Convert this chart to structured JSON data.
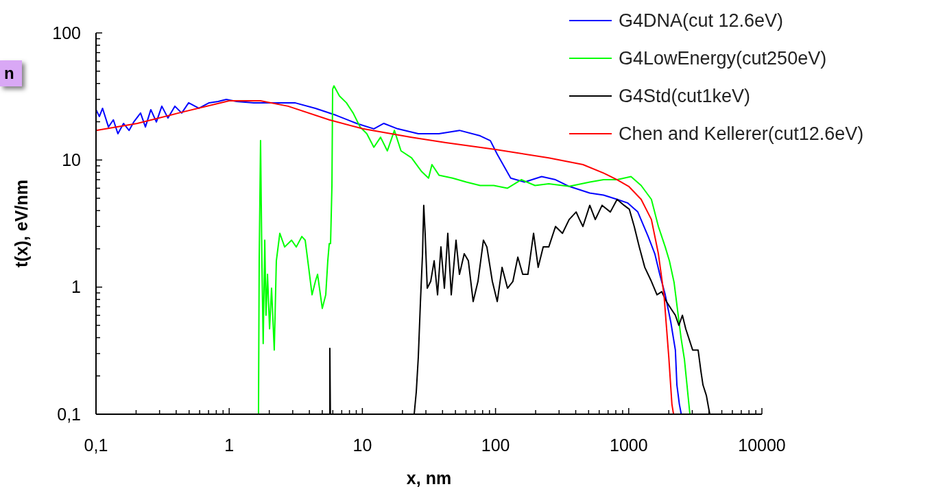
{
  "chart_data": {
    "type": "line",
    "xlabel": "x, nm",
    "ylabel": "t(x), eV/nm",
    "annotations": [
      "n"
    ],
    "log": "xy",
    "grid": false,
    "legend": "top right",
    "marker": "none",
    "line_style": "solid",
    "xlim": [
      0.1,
      10000
    ],
    "ylim": [
      0.1,
      100
    ],
    "xticks": [
      {
        "value": 0.1,
        "label": "0,1"
      },
      {
        "value": 0.2,
        "label": null
      },
      {
        "value": 0.3,
        "label": null
      },
      {
        "value": 0.4,
        "label": null
      },
      {
        "value": 0.5,
        "label": null
      },
      {
        "value": 0.6,
        "label": null
      },
      {
        "value": 0.7,
        "label": null
      },
      {
        "value": 0.8,
        "label": null
      },
      {
        "value": 0.9,
        "label": null
      },
      1,
      {
        "value": 2,
        "label": null
      },
      {
        "value": 3,
        "label": null
      },
      {
        "value": 4,
        "label": null
      },
      {
        "value": 5,
        "label": null
      },
      {
        "value": 6,
        "label": null
      },
      {
        "value": 7,
        "label": null
      },
      {
        "value": 8,
        "label": null
      },
      {
        "value": 9,
        "label": null
      },
      10,
      {
        "value": 20,
        "label": null
      },
      {
        "value": 30,
        "label": null
      },
      {
        "value": 40,
        "label": null
      },
      {
        "value": 50,
        "label": null
      },
      {
        "value": 60,
        "label": null
      },
      {
        "value": 70,
        "label": null
      },
      {
        "value": 80,
        "label": null
      },
      {
        "value": 90,
        "label": null
      },
      100,
      {
        "value": 200,
        "label": null
      },
      {
        "value": 300,
        "label": null
      },
      {
        "value": 400,
        "label": null
      },
      {
        "value": 500,
        "label": null
      },
      {
        "value": 600,
        "label": null
      },
      {
        "value": 700,
        "label": null
      },
      {
        "value": 800,
        "label": null
      },
      {
        "value": 900,
        "label": null
      },
      1000,
      {
        "value": 2000,
        "label": null
      },
      {
        "value": 3000,
        "label": null
      },
      {
        "value": 4000,
        "label": null
      },
      {
        "value": 5000,
        "label": null
      },
      {
        "value": 6000,
        "label": null
      },
      {
        "value": 7000,
        "label": null
      },
      {
        "value": 8000,
        "label": null
      },
      {
        "value": 9000,
        "label": null
      },
      10000
    ],
    "yticks": [
      {
        "value": 0.1,
        "label": "0,1"
      },
      {
        "value": 0.2,
        "label": null
      },
      {
        "value": 0.3,
        "label": null
      },
      {
        "value": 0.4,
        "label": null
      },
      {
        "value": 0.5,
        "label": null
      },
      {
        "value": 0.6,
        "label": null
      },
      {
        "value": 0.7,
        "label": null
      },
      {
        "value": 0.8,
        "label": null
      },
      {
        "value": 0.9,
        "label": null
      },
      1,
      {
        "value": 2,
        "label": null
      },
      {
        "value": 3,
        "label": null
      },
      {
        "value": 4,
        "label": null
      },
      {
        "value": 5,
        "label": null
      },
      {
        "value": 6,
        "label": null
      },
      {
        "value": 7,
        "label": null
      },
      {
        "value": 8,
        "label": null
      },
      {
        "value": 9,
        "label": null
      },
      10,
      {
        "value": 20,
        "label": null
      },
      {
        "value": 30,
        "label": null
      },
      {
        "value": 40,
        "label": null
      },
      {
        "value": 50,
        "label": null
      },
      {
        "value": 60,
        "label": null
      },
      {
        "value": 70,
        "label": null
      },
      {
        "value": 80,
        "label": null
      },
      {
        "value": 90,
        "label": null
      },
      100
    ],
    "series": [
      {
        "name": "G4DNA(cut 12.6eV)",
        "color": "#0000ff",
        "x": [
          0.1,
          0.106,
          0.112,
          0.124,
          0.135,
          0.146,
          0.161,
          0.177,
          0.192,
          0.216,
          0.235,
          0.258,
          0.284,
          0.312,
          0.347,
          0.391,
          0.44,
          0.496,
          0.592,
          0.707,
          0.826,
          0.951,
          1.14,
          1.53,
          2.18,
          3.11,
          4.44,
          6.34,
          9.06,
          12.2,
          14.5,
          18.4,
          26.3,
          37.6,
          53.6,
          76.6,
          91.4,
          103,
          130,
          165,
          222,
          282,
          357,
          510,
          647,
          818,
          979,
          1170,
          1400,
          1570,
          1710,
          1880,
          2070,
          2240,
          2300,
          2400,
          2480
        ],
        "values": [
          24.9,
          22.0,
          25.5,
          18.2,
          20.7,
          16.1,
          19.4,
          17.1,
          19.9,
          23.4,
          18.2,
          24.9,
          19.9,
          26.5,
          21.4,
          26.5,
          23.4,
          28.2,
          25.5,
          28.2,
          28.9,
          30.0,
          28.9,
          28.2,
          28.2,
          28.2,
          25.5,
          22.5,
          19.4,
          17.6,
          19.4,
          17.6,
          16.1,
          16.1,
          17.1,
          15.5,
          14.2,
          11.1,
          7.2,
          6.7,
          7.4,
          7.0,
          6.2,
          5.5,
          5.3,
          4.9,
          4.6,
          3.9,
          2.5,
          1.83,
          1.26,
          0.87,
          0.53,
          0.32,
          0.17,
          0.12,
          0.1
        ]
      },
      {
        "name": "G4LowEnergy(cut250eV)",
        "color": "#00ff00",
        "x": [
          1.66,
          1.68,
          1.72,
          1.76,
          1.8,
          1.85,
          1.89,
          1.94,
          2.01,
          2.08,
          2.18,
          2.26,
          2.4,
          2.61,
          2.94,
          3.19,
          3.51,
          3.72,
          3.95,
          4.19,
          4.44,
          4.61,
          5.0,
          5.31,
          5.5,
          5.64,
          5.77,
          5.91,
          5.98,
          6.12,
          6.73,
          7.59,
          8.53,
          9.61,
          10.8,
          12.2,
          13.7,
          15.4,
          17.4,
          19.5,
          23.4,
          27.9,
          31.4,
          33.3,
          37.6,
          47.6,
          60.4,
          76.6,
          97.0,
          123,
          156,
          198,
          251,
          357,
          510,
          647,
          818,
          1040,
          1240,
          1480,
          1670,
          1880,
          2020,
          2190,
          2470,
          2620,
          2880
        ],
        "values": [
          0.1,
          1.61,
          14.2,
          1.61,
          0.36,
          2.34,
          0.6,
          1.26,
          0.47,
          0.98,
          0.32,
          1.61,
          2.65,
          2.07,
          2.34,
          2.07,
          2.5,
          2.34,
          1.43,
          0.87,
          1.11,
          1.26,
          0.68,
          0.87,
          1.61,
          2.2,
          2.2,
          6.3,
          36.1,
          38.3,
          31.9,
          28.2,
          23.4,
          18.2,
          16.1,
          12.6,
          15.1,
          11.8,
          17.1,
          11.8,
          10.4,
          8.1,
          7.2,
          9.2,
          7.6,
          7.2,
          6.7,
          6.3,
          6.3,
          6.0,
          7.0,
          6.3,
          6.5,
          6.2,
          6.7,
          7.0,
          7.0,
          7.4,
          6.3,
          4.9,
          3.0,
          2.07,
          1.61,
          1.09,
          0.4,
          0.27,
          0.1
        ]
      },
      {
        "name": "G4Std(cut1keV)",
        "color": "#000000",
        "x": [
          5.7,
          5.7,
          5.75,
          15,
          24.5,
          25.4,
          26.3,
          27.3,
          28.3,
          28.9,
          29.6,
          30.7,
          32.6,
          34.6,
          36.7,
          38.9,
          41.3,
          43.8,
          46.5,
          50.5,
          53.6,
          58.2,
          62.5,
          67.9,
          73.8,
          81.1,
          86.1,
          94.6,
          103,
          112,
          123,
          135,
          147,
          160,
          175,
          193,
          209,
          228,
          251,
          282,
          318,
          357,
          403,
          427,
          453,
          510,
          561,
          631,
          728,
          818,
          923,
          1010,
          1100,
          1200,
          1320,
          1480,
          1630,
          1770,
          1920,
          2070,
          2240,
          2380,
          2530,
          2680,
          3020,
          3320,
          3480,
          3610,
          3830,
          4060
        ],
        "values": [
          0.1,
          0.33,
          0.1,
          null,
          0.1,
          0.15,
          0.28,
          0.77,
          1.83,
          4.4,
          2.65,
          0.98,
          1.11,
          1.61,
          0.87,
          2.07,
          0.98,
          2.65,
          0.87,
          2.34,
          1.26,
          1.83,
          1.61,
          0.77,
          1.11,
          2.34,
          2.07,
          1.11,
          0.77,
          1.43,
          0.98,
          1.11,
          1.72,
          1.26,
          1.26,
          2.65,
          1.43,
          2.07,
          2.07,
          3.0,
          2.65,
          3.4,
          3.9,
          3.4,
          3.0,
          4.4,
          3.4,
          4.4,
          3.9,
          4.9,
          4.4,
          4.1,
          3.0,
          2.07,
          1.43,
          1.11,
          0.87,
          0.92,
          0.77,
          0.68,
          0.6,
          0.5,
          0.6,
          0.47,
          0.32,
          0.32,
          0.22,
          0.17,
          0.14,
          0.1
        ]
      },
      {
        "name": "Chen and Kellerer(cut12.6eV)",
        "color": "#ff0000",
        "x": [
          0.1,
          0.204,
          0.415,
          1.0,
          1.72,
          2.77,
          5.64,
          10.1,
          23.4,
          42.3,
          100,
          251,
          453,
          647,
          818,
          1000,
          1240,
          1480,
          1670,
          1840,
          2000,
          2110,
          2170
        ],
        "values": [
          17.1,
          19.4,
          23.4,
          29.2,
          29.2,
          26.5,
          20.7,
          17.6,
          15.1,
          13.7,
          12.1,
          10.4,
          9.2,
          7.9,
          7.0,
          6.2,
          4.9,
          3.4,
          1.83,
          0.87,
          0.28,
          0.12,
          0.1
        ]
      }
    ]
  }
}
